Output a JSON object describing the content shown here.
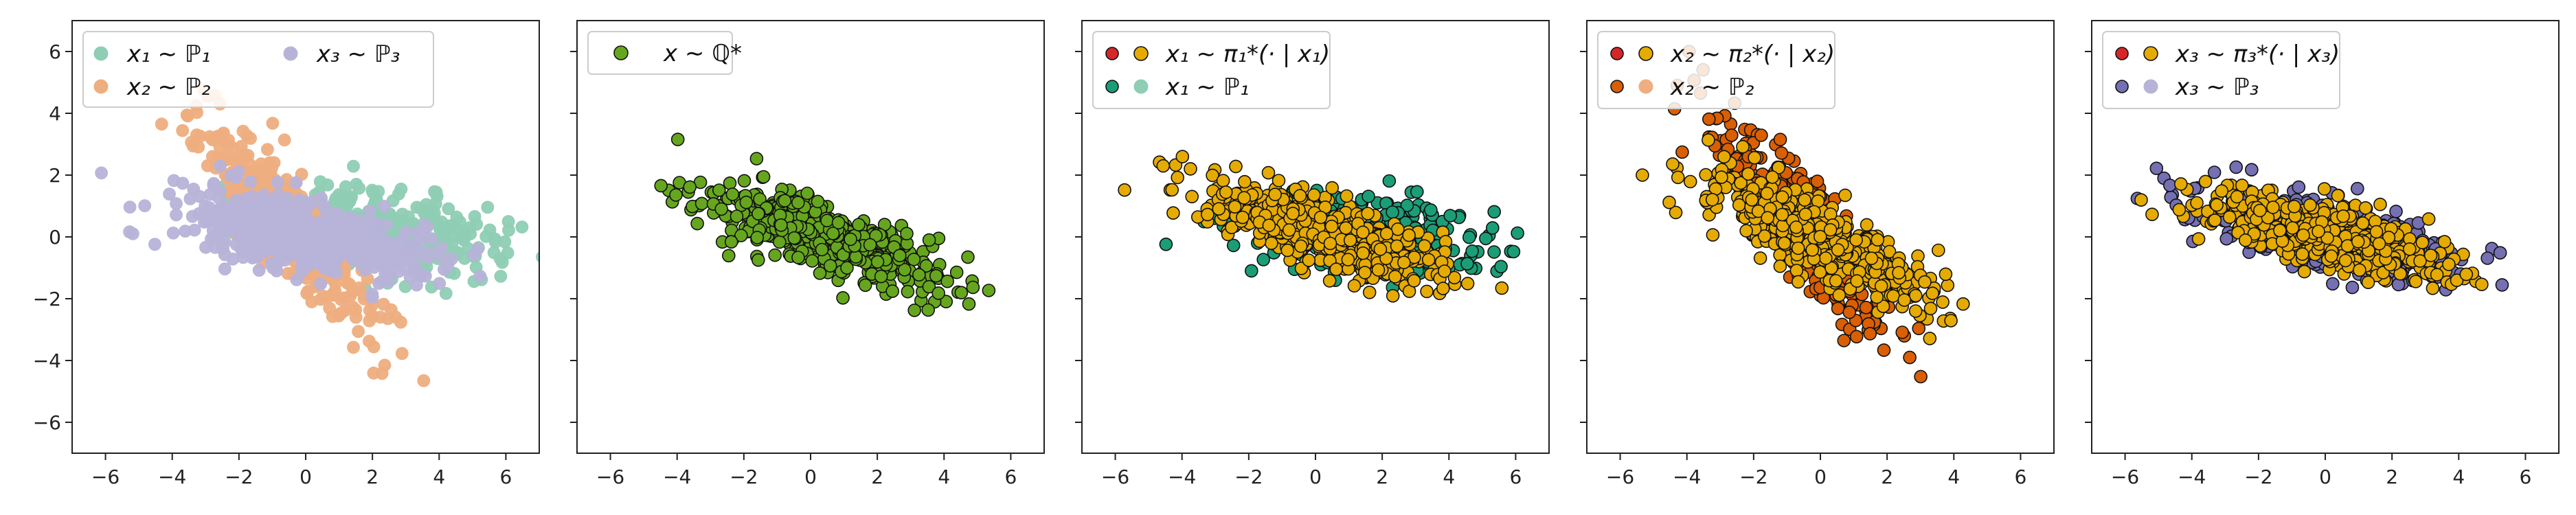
{
  "figure": {
    "xlim": [
      -7,
      7
    ],
    "ylim": [
      -7,
      7
    ],
    "xticks": [
      -6,
      -4,
      -2,
      0,
      2,
      4,
      6
    ],
    "yticks": [
      -6,
      -4,
      -2,
      0,
      2,
      4,
      6
    ],
    "colors": {
      "p1_light": "#8fcdb4",
      "p2_light": "#eeae80",
      "p3_light": "#b7b3d8",
      "green_q": "#66a61e",
      "teal_dark": "#1b9e77",
      "orange_dark": "#d95f02",
      "purple_dark": "#7570b3",
      "yellow": "#e6ab02",
      "red": "#d62728"
    }
  },
  "chart_data": [
    {
      "type": "scatter",
      "panel": 1,
      "legend": {
        "placement": "top-left",
        "entries": [
          "x₁ ∼ ℙ₁",
          "x₂ ∼ ℙ₂",
          "x₃ ∼ ℙ₃"
        ]
      },
      "series": [
        {
          "name": "x₁ ∼ ℙ₁",
          "color": "#8fcdb4",
          "cloud": {
            "n": 380,
            "mean": [
              2.2,
              0.2
            ],
            "sd_major": 1.9,
            "sd_minor": 0.65,
            "angle_deg": -8
          }
        },
        {
          "name": "x₂ ∼ ℙ₂",
          "color": "#eeae80",
          "cloud": {
            "n": 380,
            "mean": [
              -0.5,
              0.4
            ],
            "sd_major": 2.0,
            "sd_minor": 0.55,
            "angle_deg": -52
          }
        },
        {
          "name": "x₃ ∼ ℙ₃",
          "color": "#b7b3d8",
          "cloud": {
            "n": 500,
            "mean": [
              0.0,
              0.0
            ],
            "sd_major": 2.0,
            "sd_minor": 0.6,
            "angle_deg": -13
          }
        }
      ]
    },
    {
      "type": "scatter",
      "panel": 2,
      "legend": {
        "placement": "top-left",
        "entries": [
          "x ∼ ℚ*"
        ]
      },
      "series": [
        {
          "name": "x ∼ ℚ*",
          "color": "#66a61e",
          "cloud": {
            "n": 520,
            "mean": [
              0.3,
              0.0
            ],
            "sd_major": 1.85,
            "sd_minor": 0.5,
            "angle_deg": -22
          }
        }
      ]
    },
    {
      "type": "scatter",
      "panel": 3,
      "legend": {
        "placement": "top-left",
        "entries": [
          "x₁ ∼ π₁*(· | x₁)",
          "x₁ ∼ ℙ₁"
        ]
      },
      "series": [
        {
          "name": "x₁ ∼ ℙ₁",
          "color": "#1b9e77",
          "cloud": {
            "n": 380,
            "mean": [
              1.3,
              0.1
            ],
            "sd_major": 1.9,
            "sd_minor": 0.6,
            "angle_deg": -6
          }
        },
        {
          "name": "x₁ ∼ π₁*(· | x₁)",
          "color": "#e6ab02",
          "cloud": {
            "n": 500,
            "mean": [
              0.3,
              0.1
            ],
            "sd_major": 1.85,
            "sd_minor": 0.5,
            "angle_deg": -20
          }
        }
      ]
    },
    {
      "type": "scatter",
      "panel": 4,
      "legend": {
        "placement": "top-left",
        "entries": [
          "x₂ ∼ π₂*(· | x₂)",
          "x₂ ∼ ℙ₂"
        ]
      },
      "series": [
        {
          "name": "x₂ ∼ ℙ₂",
          "color": "#d95f02",
          "cloud": {
            "n": 380,
            "mean": [
              -0.4,
              0.2
            ],
            "sd_major": 2.1,
            "sd_minor": 0.5,
            "angle_deg": -55
          }
        },
        {
          "name": "x₂ ∼ π₂*(· | x₂)",
          "color": "#e6ab02",
          "cloud": {
            "n": 500,
            "mean": [
              0.0,
              -0.1
            ],
            "sd_major": 1.9,
            "sd_minor": 0.55,
            "angle_deg": -30
          }
        }
      ]
    },
    {
      "type": "scatter",
      "panel": 5,
      "legend": {
        "placement": "top-left",
        "entries": [
          "x₃ ∼ π₃*(· | x₃)",
          "x₃ ∼ ℙ₃"
        ]
      },
      "series": [
        {
          "name": "x₃ ∼ ℙ₃",
          "color": "#7570b3",
          "cloud": {
            "n": 450,
            "mean": [
              0.2,
              0.0
            ],
            "sd_major": 2.0,
            "sd_minor": 0.5,
            "angle_deg": -14
          }
        },
        {
          "name": "x₃ ∼ π₃*(· | x₃)",
          "color": "#e6ab02",
          "cloud": {
            "n": 500,
            "mean": [
              0.2,
              0.0
            ],
            "sd_major": 1.85,
            "sd_minor": 0.45,
            "angle_deg": -16
          }
        }
      ]
    }
  ]
}
